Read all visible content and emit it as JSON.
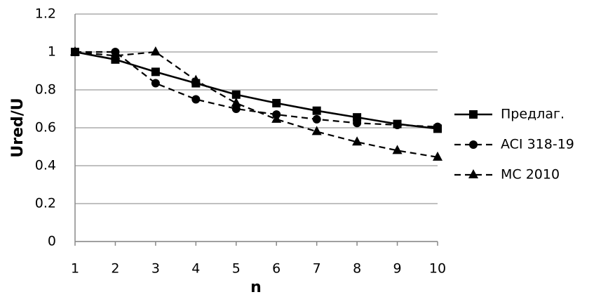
{
  "chart_data": {
    "type": "line",
    "x_label": "n",
    "y_label": "Ured/U",
    "x": [
      1,
      2,
      3,
      4,
      5,
      6,
      7,
      8,
      9,
      10
    ],
    "xlim": [
      1,
      10
    ],
    "xticks": [
      1,
      2,
      3,
      4,
      5,
      6,
      7,
      8,
      9,
      10
    ],
    "ylim": [
      0,
      1.2
    ],
    "yticks": [
      0,
      0.2,
      0.4,
      0.6,
      0.8,
      1,
      1.2
    ],
    "grid": true,
    "legend": "right",
    "series": [
      {
        "name": "Предлаг.",
        "color": "#000000",
        "marker": "square",
        "dash": false,
        "values": [
          1,
          0.96,
          0.895,
          0.835,
          0.775,
          0.73,
          0.69,
          0.655,
          0.62,
          0.595
        ]
      },
      {
        "name": "ACI 318-19",
        "color": "#000000",
        "marker": "circle",
        "dash": true,
        "values": [
          1,
          1.0,
          0.835,
          0.75,
          0.7,
          0.67,
          0.645,
          0.625,
          0.615,
          0.605
        ]
      },
      {
        "name": "MC 2010",
        "color": "#000000",
        "marker": "triangle",
        "dash": true,
        "values": [
          1,
          0.98,
          1.0,
          0.85,
          0.73,
          0.645,
          0.58,
          0.525,
          0.48,
          0.445
        ]
      }
    ]
  }
}
